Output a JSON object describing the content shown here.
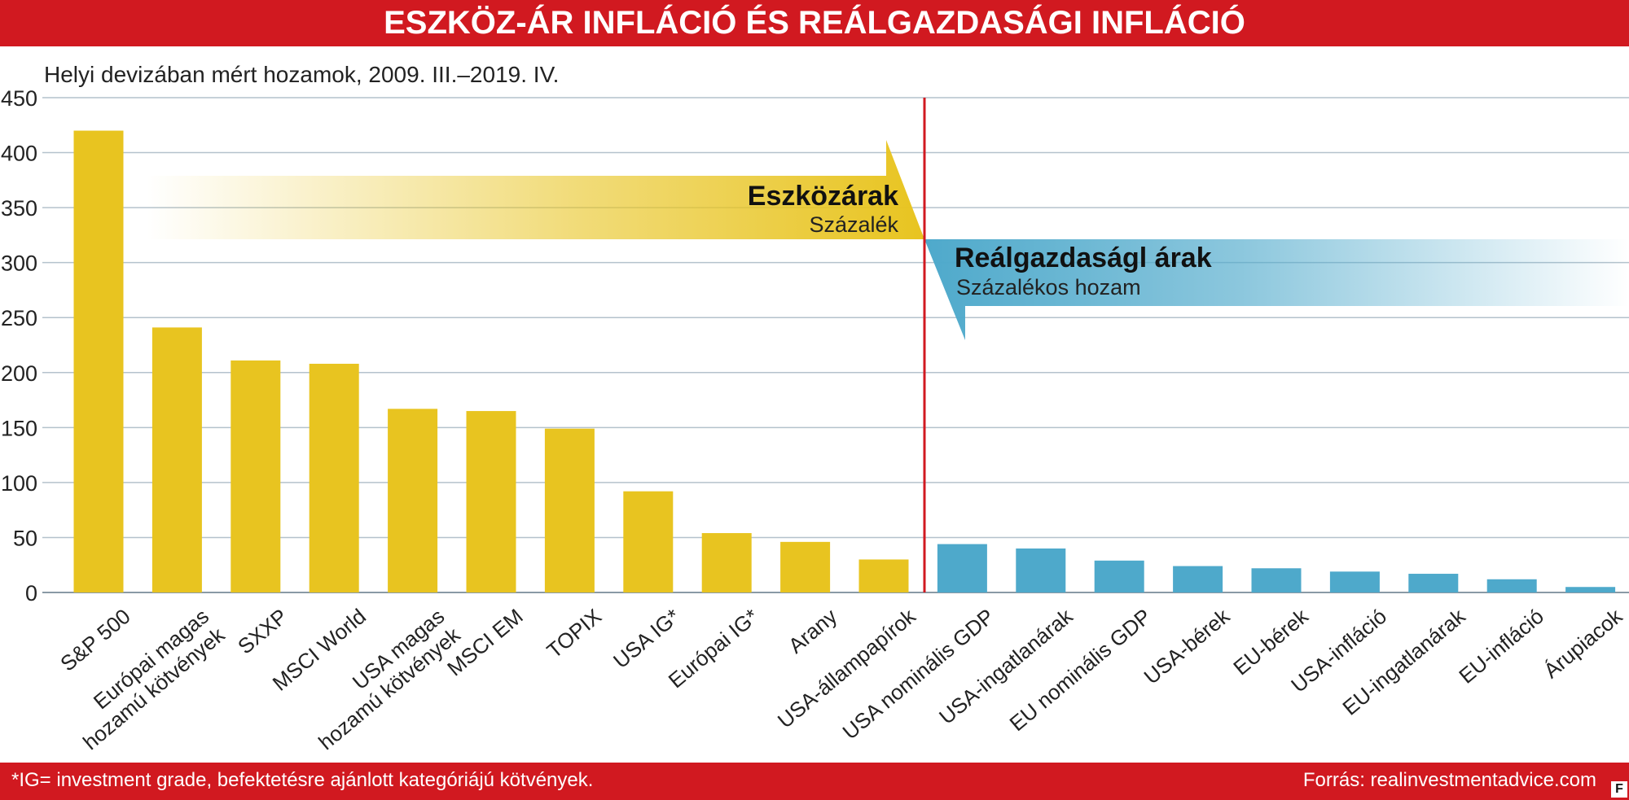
{
  "header": {
    "title": "ESZKÖZ-ÁR INFLÁCIÓ ÉS REÁLGAZDASÁGI INFLÁCIÓ",
    "subtitle": "Helyi devizában mért hozamok, 2009. III.–2019. IV."
  },
  "annotations": {
    "asset_title": "Eszközárak",
    "asset_sub": "Százalék",
    "real_title": "Reálgazdaságl árak",
    "real_sub": "Százalékos hozam"
  },
  "footer": {
    "footnote": "*IG= investment grade, befektetésre ajánlott kategóriájú kötvények.",
    "source": "Forrás: realinvestmentadvice.com",
    "logo": "F"
  },
  "colors": {
    "asset": "#e8c420",
    "real": "#4ea9cb",
    "divider": "#d11920",
    "grid": "#b4c2cc",
    "brand_red": "#d11920"
  },
  "chart_data": {
    "type": "bar",
    "title": "ESZKÖZ-ÁR INFLÁCIÓ ÉS REÁLGAZDASÁGI INFLÁCIÓ",
    "subtitle": "Helyi devizában mért hozamok, 2009. III.–2019. IV.",
    "ylim": [
      0,
      450
    ],
    "yticks": [
      0,
      50,
      100,
      150,
      200,
      250,
      300,
      350,
      400,
      450
    ],
    "grid": true,
    "categories": [
      "S&P 500",
      "Európai magas hozamú kötvények",
      "SXXP",
      "MSCI World",
      "USA magas hozamú kötvények",
      "MSCI EM",
      "TOPIX",
      "USA IG*",
      "Európai IG*",
      "Arany",
      "USA-állampapírok",
      "USA nominális GDP",
      "USA-ingatlanárak",
      "EU nominális GDP",
      "USA-bérek",
      "EU-bérek",
      "USA-infláció",
      "EU-ingatlanárak",
      "EU-infláció",
      "Árupiacok"
    ],
    "label_lines": [
      [
        "S&P 500"
      ],
      [
        "Európai magas",
        "hozamú kötvények"
      ],
      [
        "SXXP"
      ],
      [
        "MSCI World"
      ],
      [
        "USA magas",
        "hozamú kötvények"
      ],
      [
        "MSCI EM"
      ],
      [
        "TOPIX"
      ],
      [
        "USA IG*"
      ],
      [
        "Európai IG*"
      ],
      [
        "Arany"
      ],
      [
        "USA-állampapírok"
      ],
      [
        "USA nominális GDP"
      ],
      [
        "USA-ingatlanárak"
      ],
      [
        "EU nominális GDP"
      ],
      [
        "USA-bérek"
      ],
      [
        "EU-bérek"
      ],
      [
        "USA-infláció"
      ],
      [
        "EU-ingatlanárak"
      ],
      [
        "EU-infláció"
      ],
      [
        "Árupiacok"
      ]
    ],
    "values": [
      420,
      241,
      211,
      208,
      167,
      165,
      149,
      92,
      54,
      46,
      30,
      44,
      40,
      29,
      24,
      22,
      19,
      17,
      12,
      5
    ],
    "groups": [
      "asset",
      "asset",
      "asset",
      "asset",
      "asset",
      "asset",
      "asset",
      "asset",
      "asset",
      "asset",
      "asset",
      "real",
      "real",
      "real",
      "real",
      "real",
      "real",
      "real",
      "real",
      "real"
    ]
  }
}
